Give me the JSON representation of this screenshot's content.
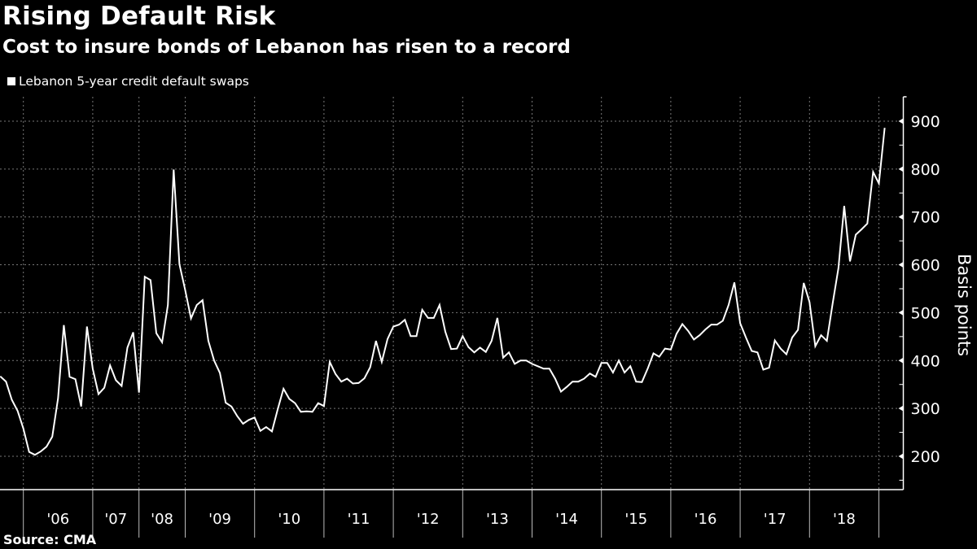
{
  "chart_data": {
    "type": "line",
    "title": "Rising Default Risk",
    "subtitle": "Cost to insure bonds of Lebanon has risen to a record",
    "source": "Source: CMA",
    "xlabel": "",
    "ylabel": "Basis points",
    "ylim": [
      135,
      1000
    ],
    "yticks": [
      200,
      300,
      400,
      500,
      600,
      700,
      800,
      900
    ],
    "ytick_labels": [
      "200",
      "300",
      "400",
      "500",
      "600",
      "700",
      "800",
      "900"
    ],
    "grid": true,
    "legend_position": "top-left",
    "line_color": "#ffffff",
    "background_color": "#000000",
    "x_unit": "observation index (roughly monthly)",
    "x_range": [
      0,
      156
    ],
    "year_boundaries": [
      4,
      16,
      24,
      32,
      44,
      56,
      68,
      80,
      92,
      104,
      116,
      128,
      140,
      152
    ],
    "x_tick_labels": [
      "'06",
      "'07",
      "'08",
      "'09",
      "'10",
      "'11",
      "'12",
      "'13",
      "'14",
      "'15",
      "'16",
      "'17",
      "'18"
    ],
    "series": [
      {
        "name": "Lebanon 5-year credit default swaps",
        "values": [
          367,
          356,
          318,
          295,
          258,
          209,
          203,
          210,
          220,
          241,
          321,
          474,
          366,
          361,
          304,
          471,
          383,
          330,
          343,
          390,
          359,
          347,
          427,
          459,
          333,
          575,
          568,
          457,
          438,
          516,
          799,
          601,
          547,
          488,
          516,
          526,
          441,
          400,
          374,
          312,
          304,
          284,
          268,
          276,
          281,
          253,
          261,
          252,
          298,
          341,
          320,
          311,
          293,
          294,
          293,
          311,
          305,
          397,
          372,
          356,
          362,
          352,
          353,
          363,
          386,
          441,
          397,
          445,
          471,
          475,
          485,
          451,
          451,
          506,
          489,
          489,
          516,
          460,
          424,
          425,
          451,
          428,
          417,
          427,
          418,
          441,
          489,
          406,
          417,
          393,
          400,
          400,
          393,
          388,
          383,
          383,
          362,
          335,
          345,
          356,
          356,
          362,
          373,
          366,
          395,
          395,
          375,
          400,
          375,
          388,
          356,
          355,
          383,
          415,
          408,
          425,
          423,
          456,
          476,
          462,
          444,
          453,
          465,
          475,
          475,
          483,
          516,
          563,
          478,
          448,
          420,
          417,
          381,
          385,
          442,
          425,
          413,
          448,
          464,
          562,
          522,
          430,
          453,
          441,
          519,
          593,
          723,
          607,
          663,
          674,
          686,
          794,
          770,
          886
        ]
      }
    ]
  }
}
